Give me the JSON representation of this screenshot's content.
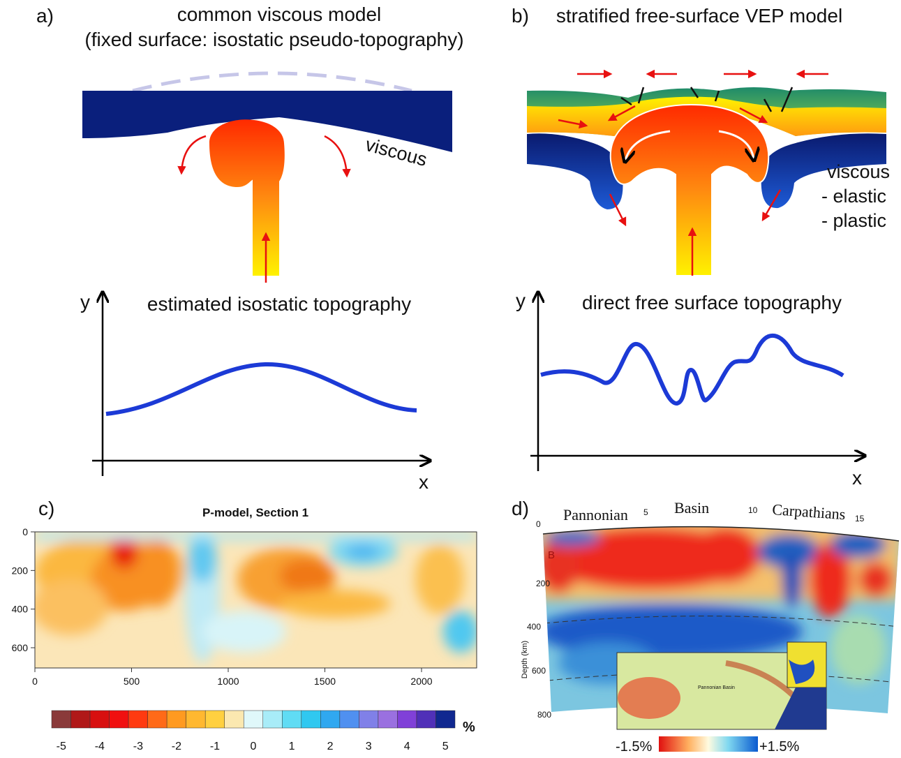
{
  "panels": [
    {
      "label": "a)",
      "title": "common viscous model",
      "subtitle": "(fixed surface: isostatic pseudo-topography)",
      "annotation": "viscous",
      "plot_title": "estimated isostatic topography",
      "y_axis": "y",
      "x_axis": "x"
    },
    {
      "label": "b)",
      "title": "stratified free-surface VEP model",
      "annotations": [
        "viscous",
        "- elastic",
        "- plastic"
      ],
      "plot_title": "direct free surface topography",
      "y_axis": "y",
      "x_axis": "x"
    },
    {
      "label": "c)",
      "title": "P-model, Section 1",
      "yticks": [
        0,
        200,
        400,
        600
      ],
      "xticks": [
        0,
        500,
        1000,
        1500,
        2000
      ],
      "colorbar_labels": [
        -5,
        -4,
        -3,
        -2,
        -1,
        0,
        1,
        2,
        3,
        4,
        5
      ],
      "colorbar_unit": "%"
    },
    {
      "label": "d)",
      "top_labels": [
        "Pannonian",
        "5",
        "Basin",
        "10",
        "Carpathians",
        "15"
      ],
      "start_tick": "0",
      "section_label": "B",
      "depth_label": "Depth (km)",
      "depth_ticks": [
        "200",
        "400",
        "600",
        "800"
      ],
      "inset_label": "Pannonian Basin",
      "colorbar_min": "-1.5%",
      "colorbar_max": "+1.5%"
    }
  ]
}
